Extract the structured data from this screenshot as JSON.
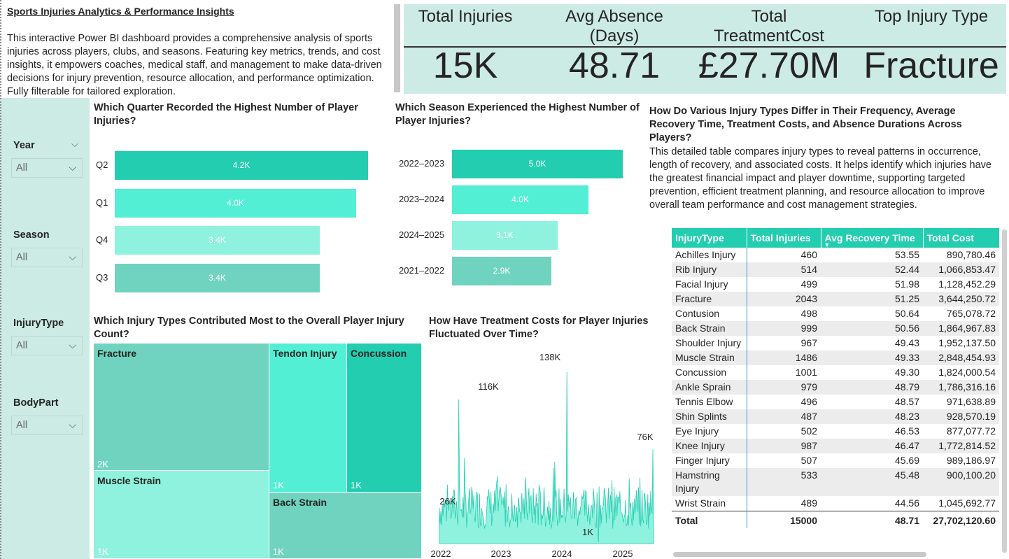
{
  "intro": {
    "title": "Sports Injuries Analytics & Performance Insights",
    "description": "This interactive Power BI dashboard provides a comprehensive analysis of sports injuries across players, clubs, and seasons. Featuring key metrics, trends, and cost insights, it empowers coaches, medical staff, and management to make data-driven decisions for injury prevention, resource allocation, and performance optimization. Fully filterable for tailored exploration."
  },
  "kpis": [
    {
      "label": "Total Injuries",
      "value": "15K"
    },
    {
      "label": "Avg Absence (Days)",
      "value": "48.71"
    },
    {
      "label": "Total TreatmentCost",
      "value": "£27.70M"
    },
    {
      "label": "Top Injury Type",
      "value": "Fracture"
    }
  ],
  "slicers": [
    {
      "label": "Year",
      "value": "All"
    },
    {
      "label": "Season",
      "value": "All"
    },
    {
      "label": "InjuryType",
      "value": "All"
    },
    {
      "label": "BodyPart",
      "value": "All"
    }
  ],
  "colors": {
    "teal_dark": "#22cdb0",
    "teal_bright": "#52efd5",
    "teal_light": "#8ef2de",
    "teal_muted": "#6fd3bf",
    "panel_bg": "#cdebe5"
  },
  "table_intro": {
    "title": "How Do Various Injury Types Differ in Their Frequency, Average Recovery Time, Treatment Costs, and Absence Durations Across Players?",
    "description": " This detailed table compares injury types to reveal patterns in occurrence, length of recovery, and associated costs. It helps identify which injuries have the greatest financial impact and player downtime, supporting targeted prevention, efficient treatment planning, and resource allocation to improve overall team performance and cost management strategies."
  },
  "table": {
    "columns": [
      "InjuryType",
      "Total Injuries",
      "Avg Recovery Time",
      "Total Cost"
    ],
    "rows": [
      [
        "Achilles Injury",
        "460",
        "53.55",
        "890,780.46"
      ],
      [
        "Rib Injury",
        "514",
        "52.44",
        "1,066,853.47"
      ],
      [
        "Facial Injury",
        "499",
        "51.98",
        "1,128,452.29"
      ],
      [
        "Fracture",
        "2043",
        "51.25",
        "3,644,250.72"
      ],
      [
        "Contusion",
        "498",
        "50.64",
        "765,078.72"
      ],
      [
        "Back Strain",
        "999",
        "50.56",
        "1,864,967.83"
      ],
      [
        "Shoulder Injury",
        "967",
        "49.43",
        "1,952,137.50"
      ],
      [
        "Muscle Strain",
        "1486",
        "49.33",
        "2,848,454.93"
      ],
      [
        "Concussion",
        "1001",
        "49.30",
        "1,824,000.54"
      ],
      [
        "Ankle Sprain",
        "979",
        "48.79",
        "1,786,316.16"
      ],
      [
        "Tennis Elbow",
        "496",
        "48.57",
        "971,638.89"
      ],
      [
        "Shin Splints",
        "487",
        "48.23",
        "928,570.19"
      ],
      [
        "Eye Injury",
        "502",
        "46.53",
        "877,077.72"
      ],
      [
        "Knee Injury",
        "987",
        "46.47",
        "1,772,814.52"
      ],
      [
        "Finger Injury",
        "507",
        "45.69",
        "989,186.97"
      ],
      [
        "Hamstring Injury",
        "533",
        "45.48",
        "900,100.20"
      ],
      [
        "Wrist Strain",
        "489",
        "44.56",
        "1,045,692.77"
      ]
    ],
    "total": [
      "Total",
      "15000",
      "48.71",
      "27,702,120.60"
    ]
  },
  "chart_data": [
    {
      "type": "bar",
      "title": "Which Quarter Recorded the Highest Number of Player Injuries?",
      "categories": [
        "Q2",
        "Q1",
        "Q4",
        "Q3"
      ],
      "values": [
        4200,
        4000,
        3400,
        3400
      ],
      "labels": [
        "4.2K",
        "4.0K",
        "3.4K",
        "3.4K"
      ],
      "colors": [
        "#22cdb0",
        "#52efd5",
        "#8ef2de",
        "#6fd3bf"
      ],
      "orientation": "horizontal"
    },
    {
      "type": "bar",
      "title": "Which Season Experienced the Highest Number of Player Injuries?",
      "categories": [
        "2022–2023",
        "2023–2024",
        "2024–2025",
        "2021–2022"
      ],
      "values": [
        5000,
        4000,
        3100,
        2900
      ],
      "labels": [
        "5.0K",
        "4.0K",
        "3.1K",
        "2.9K"
      ],
      "colors": [
        "#22cdb0",
        "#52efd5",
        "#8ef2de",
        "#6fd3bf"
      ],
      "orientation": "horizontal"
    },
    {
      "type": "treemap",
      "title": "Which Injury Types Contributed Most to the Overall Player Injury Count?",
      "items": [
        {
          "name": "Fracture",
          "label": "2K",
          "value": 2043
        },
        {
          "name": "Muscle Strain",
          "label": "1K",
          "value": 1486
        },
        {
          "name": "Tendon Injury",
          "label": "1K",
          "value": 1000
        },
        {
          "name": "Concussion",
          "label": "1K",
          "value": 1001
        },
        {
          "name": "Back Strain",
          "label": "1K",
          "value": 999
        }
      ]
    },
    {
      "type": "area",
      "title": "How Have Treatment Costs for Player Injuries Fluctuated Over Time?",
      "x_ticks": [
        "2022",
        "2023",
        "2024",
        "2025"
      ],
      "annotations": [
        "116K",
        "138K",
        "76K",
        "26K",
        "1K"
      ],
      "peaks": [
        116000,
        138000,
        76000,
        26000,
        1000
      ]
    }
  ]
}
